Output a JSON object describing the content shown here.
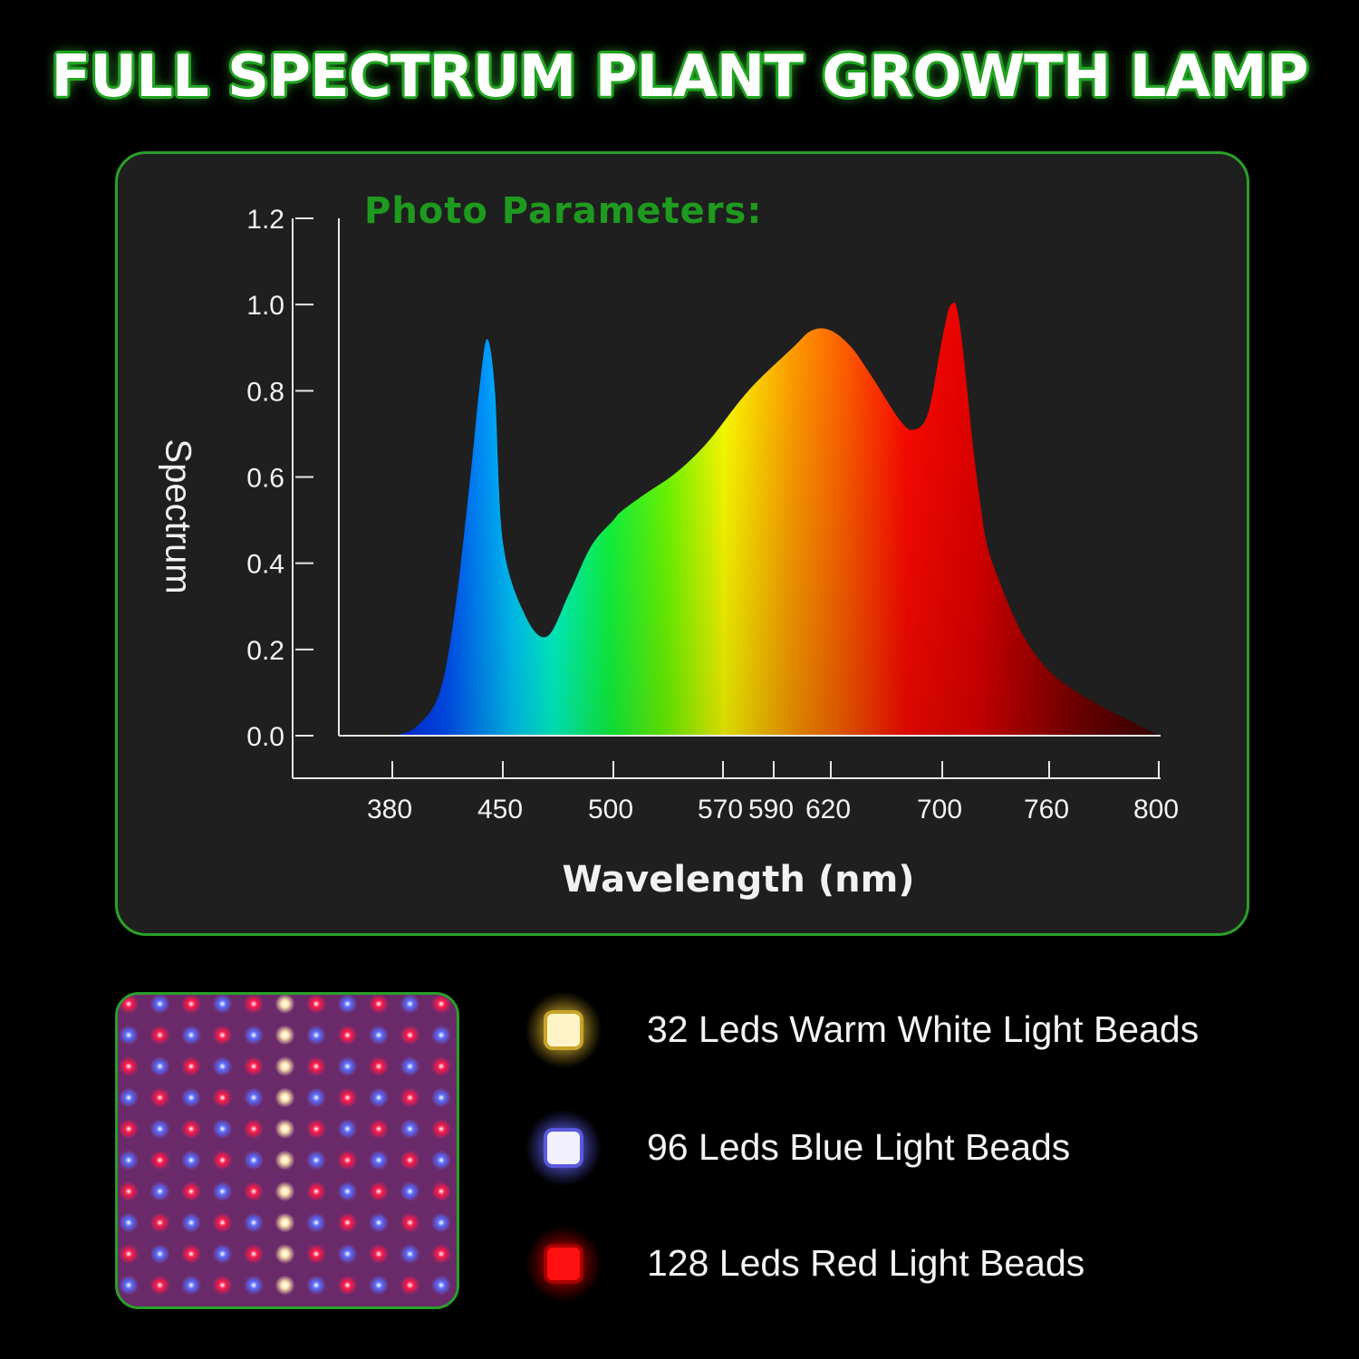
{
  "header": {
    "title": "FULL SPECTRUM PLANT GROWTH LAMP"
  },
  "chart_data": {
    "type": "area",
    "title": "Photo Parameters:",
    "xlabel": "Wavelength (nm)",
    "ylabel": "Spectrum",
    "x_ticks": [
      380,
      450,
      500,
      570,
      590,
      620,
      700,
      760,
      800
    ],
    "y_ticks": [
      "0.0",
      "0.2",
      "0.4",
      "0.6",
      "0.8",
      "1.0",
      "1.2"
    ],
    "ylim": [
      0,
      1.2
    ],
    "grid": false,
    "series": [
      {
        "x": [
          380,
          395,
          410,
          420,
          430,
          435,
          440,
          445,
          450,
          460,
          470,
          480,
          490,
          500,
          505,
          520,
          540,
          560,
          580,
          600,
          610,
          620,
          635,
          650,
          670,
          680,
          690,
          700,
          705,
          710,
          720,
          730,
          760,
          800
        ],
        "y": [
          0.0,
          0.02,
          0.1,
          0.3,
          0.62,
          0.8,
          0.92,
          0.8,
          0.45,
          0.28,
          0.23,
          0.33,
          0.44,
          0.5,
          0.52,
          0.56,
          0.61,
          0.68,
          0.8,
          0.9,
          0.94,
          0.94,
          0.9,
          0.83,
          0.73,
          0.71,
          0.75,
          0.92,
          1.0,
          0.95,
          0.58,
          0.38,
          0.15,
          0.0
        ]
      }
    ]
  },
  "legend": [
    {
      "label": "32 Leds Warm White Light Beads",
      "color": "#fff4c8",
      "glow": "#c8a42a"
    },
    {
      "label": "96 Leds Blue Light Beads",
      "color": "#f2f0ff",
      "glow": "#5a5adc"
    },
    {
      "label": "128 Leds Red Light Beads",
      "color": "#ff1010",
      "glow": "#a80000"
    }
  ]
}
